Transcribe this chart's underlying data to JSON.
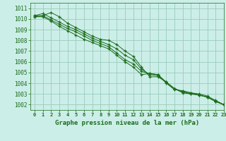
{
  "title": "Graphe pression niveau de la mer (hPa)",
  "background_color": "#cceee8",
  "grid_color": "#99ccbb",
  "line_color": "#1a6b1a",
  "marker_color": "#1a6b1a",
  "xlim": [
    -0.5,
    23
  ],
  "ylim": [
    1001.5,
    1011.5
  ],
  "xticks": [
    0,
    1,
    2,
    3,
    4,
    5,
    6,
    7,
    8,
    9,
    10,
    11,
    12,
    13,
    14,
    15,
    16,
    17,
    18,
    19,
    20,
    21,
    22,
    23
  ],
  "yticks": [
    1002,
    1003,
    1004,
    1005,
    1006,
    1007,
    1008,
    1009,
    1010,
    1011
  ],
  "series": [
    [
      1010.3,
      1010.3,
      1010.6,
      1010.2,
      1009.6,
      1009.2,
      1008.8,
      1008.4,
      1008.1,
      1008.0,
      1007.6,
      1007.0,
      1006.5,
      1005.5,
      1004.6,
      1004.6,
      1004.1,
      1003.5,
      1003.1,
      1003.0,
      1002.9,
      1002.7,
      1002.3,
      1002.0
    ],
    [
      1010.3,
      1010.5,
      1010.1,
      1009.7,
      1009.3,
      1009.0,
      1008.6,
      1008.2,
      1007.9,
      1007.6,
      1007.2,
      1006.6,
      1006.2,
      1005.3,
      1004.8,
      1004.7,
      1004.1,
      1003.5,
      1003.2,
      1003.1,
      1003.0,
      1002.8,
      1002.4,
      1002.0
    ],
    [
      1010.2,
      1010.3,
      1009.9,
      1009.5,
      1009.1,
      1008.8,
      1008.4,
      1008.0,
      1007.7,
      1007.4,
      1006.8,
      1006.2,
      1005.8,
      1005.1,
      1004.9,
      1004.8,
      1004.1,
      1003.5,
      1003.2,
      1003.0,
      1002.9,
      1002.7,
      1002.3,
      1002.0
    ],
    [
      1010.2,
      1010.2,
      1009.8,
      1009.3,
      1008.9,
      1008.5,
      1008.1,
      1007.8,
      1007.5,
      1007.2,
      1006.6,
      1006.0,
      1005.5,
      1004.8,
      1004.9,
      1004.8,
      1004.0,
      1003.4,
      1003.3,
      1003.1,
      1002.9,
      1002.7,
      1002.3,
      1002.0
    ]
  ]
}
